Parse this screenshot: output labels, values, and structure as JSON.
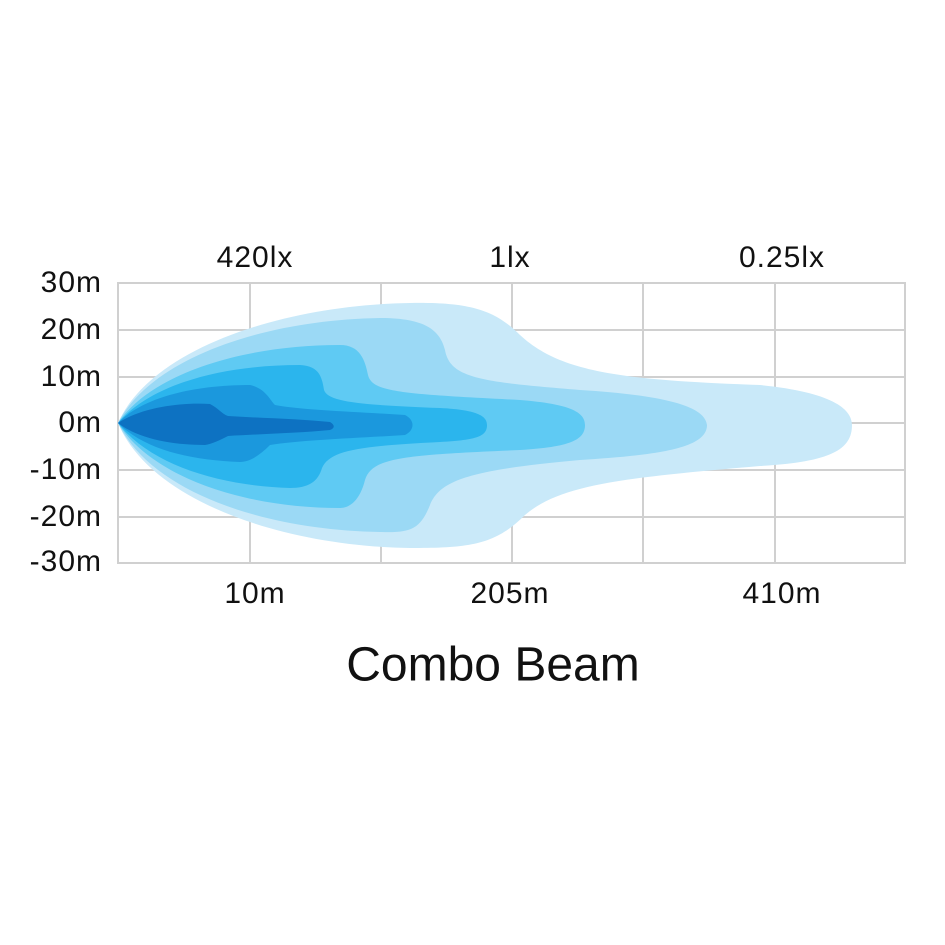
{
  "diagram": {
    "title": "Combo Beam",
    "y_labels": [
      "30m",
      "20m",
      "10m",
      "0m",
      "-10m",
      "-20m",
      "-30m"
    ],
    "lux_labels": [
      "420lx",
      "1lx",
      "0.25lx"
    ],
    "distance_labels": [
      "10m",
      "205m",
      "410m"
    ]
  }
}
